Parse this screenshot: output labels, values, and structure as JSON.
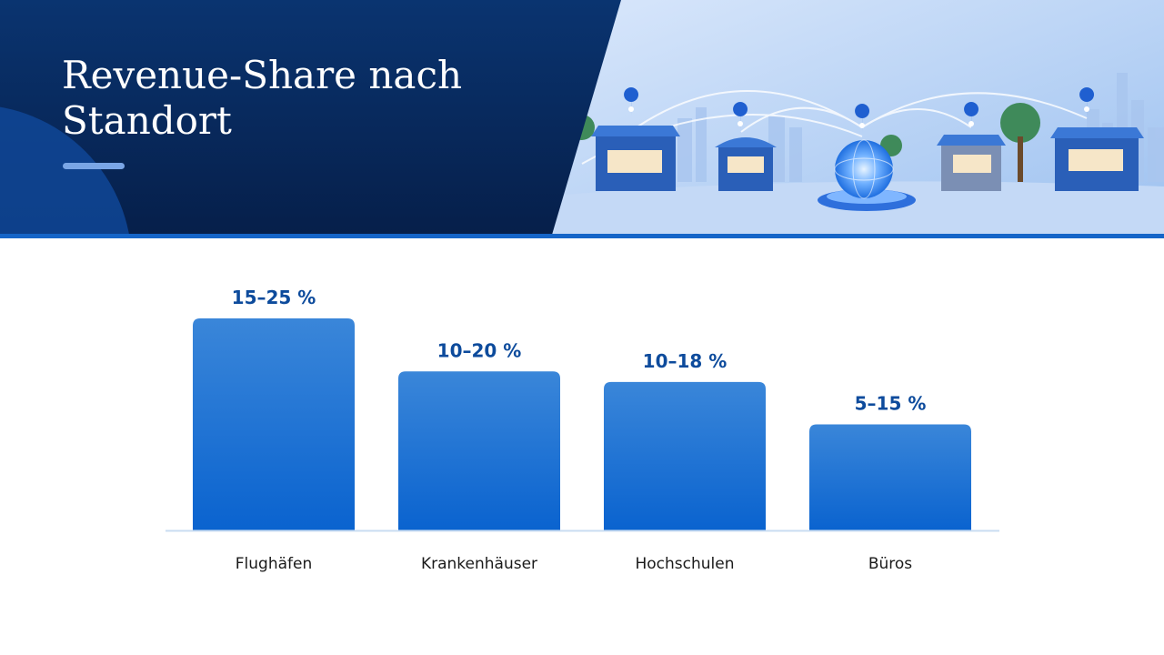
{
  "header": {
    "title_line1": "Revenue-Share nach",
    "title_line2": "Standort"
  },
  "chart_data": {
    "type": "bar",
    "categories": [
      "Flughäfen",
      "Krankenhäuser",
      "Hochschulen",
      "Büros"
    ],
    "ranges": [
      [
        15,
        25
      ],
      [
        10,
        20
      ],
      [
        10,
        18
      ],
      [
        5,
        15
      ]
    ],
    "values": [
      20,
      15,
      14,
      10
    ],
    "data_labels": [
      "15–25 %",
      "10–20 %",
      "10–18 %",
      "5–15 %"
    ],
    "title": "Revenue-Share nach Standort",
    "xlabel": "",
    "ylabel": "",
    "unit": "%",
    "ylim": [
      0,
      25
    ],
    "grid": false,
    "legend": "none",
    "colors": {
      "bar_top": "#3a86d9",
      "bar_bottom": "#0a63cf",
      "label": "#0d4b9c",
      "axis": "#c9dcf2"
    }
  }
}
